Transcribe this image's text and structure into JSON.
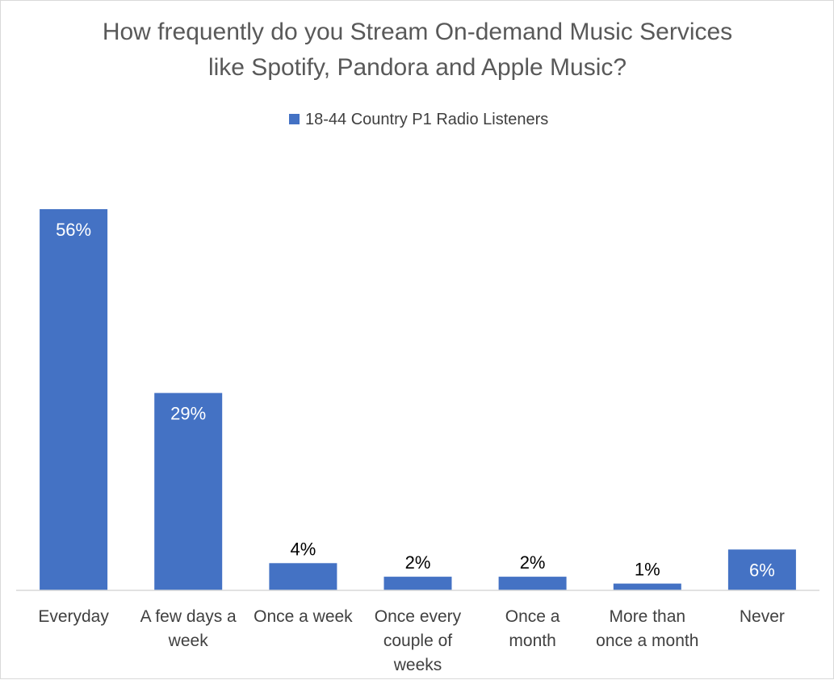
{
  "chart_data": {
    "type": "bar",
    "title_lines": [
      "How frequently do you Stream On-demand Music Services",
      "like Spotify, Pandora and Apple Music?"
    ],
    "series": [
      {
        "name": "18-44 Country P1 Radio Listeners",
        "color": "#4472C4",
        "values": [
          56,
          29,
          4,
          2,
          2,
          1,
          6
        ]
      }
    ],
    "categories": [
      "Everyday",
      "A few days a week",
      "Once a week",
      "Once every couple of weeks",
      "Once a month",
      "More than once a month",
      "Never"
    ],
    "category_lines": [
      [
        "Everyday"
      ],
      [
        "A few days a",
        "week"
      ],
      [
        "Once a week"
      ],
      [
        "Once every",
        "couple of",
        "weeks"
      ],
      [
        "Once a",
        "month"
      ],
      [
        "More than",
        "once a month"
      ],
      [
        "Never"
      ]
    ],
    "data_labels": [
      "56%",
      "29%",
      "4%",
      "2%",
      "2%",
      "1%",
      "6%"
    ],
    "label_inside": [
      true,
      true,
      false,
      false,
      false,
      false,
      true
    ],
    "xlabel": "",
    "ylabel": "",
    "ylim": [
      0,
      60
    ],
    "grid": false,
    "legend_position": "top-center"
  }
}
